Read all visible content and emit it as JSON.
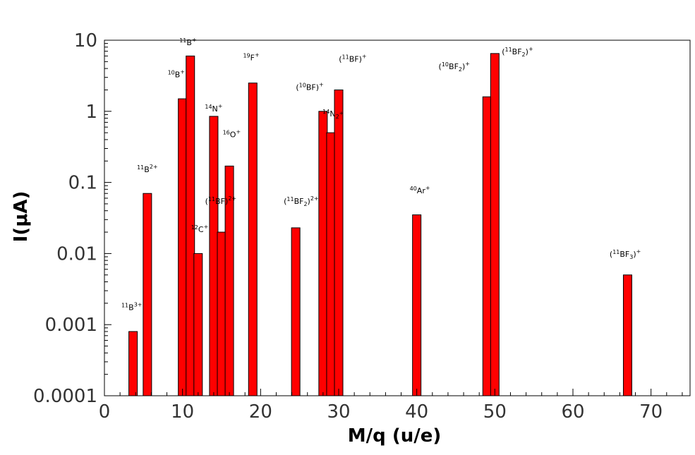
{
  "chart_data": {
    "type": "bar",
    "xlabel": "M/q (u/e)",
    "ylabel": "I(μA)",
    "x_scale": "linear",
    "y_scale": "log",
    "xlim": [
      0,
      75
    ],
    "ylim": [
      0.0001,
      10
    ],
    "x_ticks": [
      0,
      10,
      20,
      30,
      40,
      50,
      60,
      70
    ],
    "y_ticks": [
      {
        "value": 0.0001,
        "label": "0.0001"
      },
      {
        "value": 0.001,
        "label": "0.001"
      },
      {
        "value": 0.01,
        "label": "0.01"
      },
      {
        "value": 0.1,
        "label": "0.1"
      },
      {
        "value": 1,
        "label": "1"
      },
      {
        "value": 10,
        "label": "10"
      }
    ],
    "bar_color": "#ff0000",
    "grid": false,
    "bars": [
      {
        "x": 3.67,
        "y": 0.0008
      },
      {
        "x": 5.5,
        "y": 0.07
      },
      {
        "x": 10,
        "y": 1.5
      },
      {
        "x": 11,
        "y": 6.0
      },
      {
        "x": 12,
        "y": 0.01
      },
      {
        "x": 14,
        "y": 0.85
      },
      {
        "x": 15,
        "y": 0.02
      },
      {
        "x": 16,
        "y": 0.17
      },
      {
        "x": 19,
        "y": 2.5
      },
      {
        "x": 24.5,
        "y": 0.023
      },
      {
        "x": 28,
        "y": 1.0
      },
      {
        "x": 29,
        "y": 0.5
      },
      {
        "x": 30,
        "y": 2.0
      },
      {
        "x": 40,
        "y": 0.035
      },
      {
        "x": 49,
        "y": 1.6
      },
      {
        "x": 50,
        "y": 6.5
      },
      {
        "x": 67,
        "y": 0.005
      }
    ],
    "annotations": [
      {
        "base": "B",
        "iso": "11",
        "charge": "3+",
        "x": 3.5,
        "y": 0.0016
      },
      {
        "base": "B",
        "iso": "11",
        "charge": "2+",
        "x": 5.5,
        "y": 0.14
      },
      {
        "base": "B",
        "iso": "10",
        "charge": "+",
        "x": 9.2,
        "y": 3.0
      },
      {
        "base": "B",
        "iso": "11",
        "charge": "+",
        "x": 10.7,
        "y": 8.5
      },
      {
        "base": "C",
        "iso": "12",
        "charge": "+",
        "x": 12.2,
        "y": 0.02
      },
      {
        "base": "N",
        "iso": "14",
        "charge": "+",
        "x": 14.0,
        "y": 1.0
      },
      {
        "base": "(BF)",
        "iso": "11",
        "charge": "2+",
        "x": 14.9,
        "y": 0.05
      },
      {
        "base": "O",
        "iso": "16",
        "charge": "+",
        "x": 16.3,
        "y": 0.43
      },
      {
        "base": "F",
        "iso": "19",
        "charge": "+",
        "x": 18.8,
        "y": 5.2
      },
      {
        "base": "(BF2)",
        "iso": "11",
        "charge": "2+",
        "x": 25.2,
        "y": 0.05
      },
      {
        "base": "(BF)",
        "iso": "10",
        "charge": "+",
        "x": 26.3,
        "y": 2.0
      },
      {
        "base": "N2",
        "iso": "14",
        "charge": "+",
        "x": 29.3,
        "y": 0.85
      },
      {
        "base": "(BF)",
        "iso": "11",
        "charge": "+",
        "x": 31.8,
        "y": 5.0
      },
      {
        "base": "Ar",
        "iso": "40",
        "charge": "+",
        "x": 40.4,
        "y": 0.07
      },
      {
        "base": "(BF2)",
        "iso": "10",
        "charge": "+",
        "x": 44.8,
        "y": 3.9
      },
      {
        "base": "(BF2)",
        "iso": "11",
        "charge": "+",
        "x": 52.9,
        "y": 6.3
      },
      {
        "base": "(BF3)",
        "iso": "11",
        "charge": "+",
        "x": 66.7,
        "y": 0.009
      }
    ]
  }
}
